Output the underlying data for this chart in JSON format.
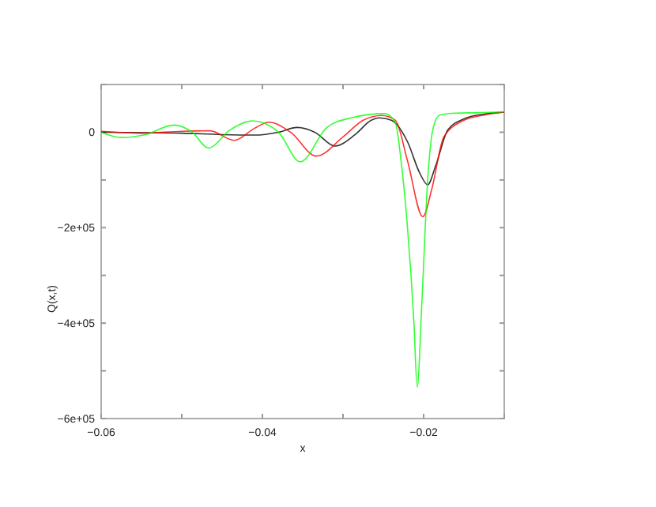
{
  "chart_data": {
    "type": "line",
    "xlabel": "x",
    "ylabel": "Q(x,t)",
    "xlim": [
      -0.06,
      -0.01
    ],
    "xticks": [
      {
        "value": -0.06,
        "label": "−0.06"
      },
      {
        "value": -0.05,
        "label": null
      },
      {
        "value": -0.04,
        "label": "−0.04"
      },
      {
        "value": -0.03,
        "label": null
      },
      {
        "value": -0.02,
        "label": "−0.02"
      },
      {
        "value": -0.01,
        "label": null
      }
    ],
    "ylim": [
      -600000,
      100000
    ],
    "yticks": [
      {
        "value": -600000,
        "label": "−6e+05"
      },
      {
        "value": -500000,
        "label": null
      },
      {
        "value": -400000,
        "label": "−4e+05"
      },
      {
        "value": -300000,
        "label": null
      },
      {
        "value": -200000,
        "label": "−2e+05"
      },
      {
        "value": -100000,
        "label": null
      },
      {
        "value": 0,
        "label": "0"
      },
      {
        "value": 100000,
        "label": null
      }
    ],
    "grid": false,
    "marker": "none",
    "line_style": "solid",
    "series": [
      {
        "color": "#000000",
        "x": [
          -0.06,
          -0.05,
          -0.045,
          -0.041,
          -0.038,
          -0.0357,
          -0.0335,
          -0.031,
          -0.0285,
          -0.0265,
          -0.0255,
          -0.024,
          -0.022,
          -0.0205,
          -0.0195,
          -0.0185,
          -0.017,
          -0.015,
          -0.0125,
          -0.01
        ],
        "values": [
          0,
          -2000,
          -5000,
          -6000,
          0,
          10000,
          0,
          -29000,
          -5000,
          25000,
          30000,
          25000,
          -20000,
          -85000,
          -110000,
          -70000,
          5000,
          28000,
          38000,
          42000
        ]
      },
      {
        "color": "#ff0000",
        "x": [
          -0.06,
          -0.055,
          -0.05,
          -0.0465,
          -0.0435,
          -0.041,
          -0.0392,
          -0.0365,
          -0.0333,
          -0.03,
          -0.0275,
          -0.0252,
          -0.0235,
          -0.022,
          -0.0201,
          -0.019,
          -0.0175,
          -0.015,
          -0.0125,
          -0.01
        ],
        "values": [
          2000,
          -2000,
          2000,
          3000,
          -17000,
          8000,
          21000,
          0,
          -50000,
          -10000,
          25000,
          35000,
          25000,
          -60000,
          -177000,
          -120000,
          -10000,
          25000,
          36000,
          42000
        ]
      },
      {
        "color": "#00ff00",
        "x": [
          -0.06,
          -0.0575,
          -0.0545,
          -0.051,
          -0.0487,
          -0.0467,
          -0.044,
          -0.0412,
          -0.038,
          -0.0353,
          -0.032,
          -0.029,
          -0.0248,
          -0.0235,
          -0.0228,
          -0.022,
          -0.0212,
          -0.0208,
          -0.0202,
          -0.0195,
          -0.0188,
          -0.018,
          -0.016,
          -0.013,
          -0.01
        ],
        "values": [
          0,
          -11000,
          -5000,
          15000,
          0,
          -33000,
          5000,
          24000,
          0,
          -62000,
          10000,
          30000,
          39000,
          20000,
          -60000,
          -200000,
          -400000,
          -534000,
          -350000,
          -100000,
          10000,
          36000,
          40000,
          41000,
          43000
        ]
      }
    ]
  }
}
